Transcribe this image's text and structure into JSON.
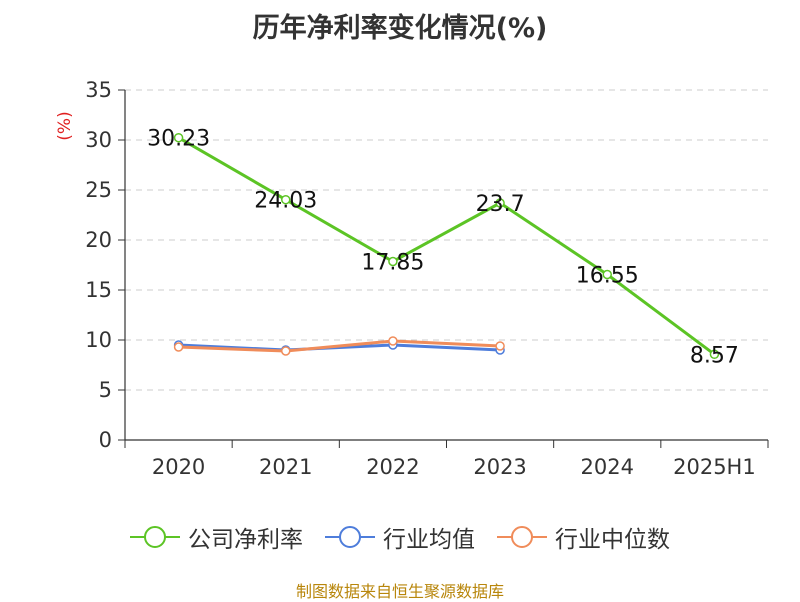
{
  "chart_data": {
    "type": "line",
    "title": "历年净利率变化情况(%)",
    "ylabel": "(%)",
    "categories": [
      "2020",
      "2021",
      "2022",
      "2023",
      "2024",
      "2025H1"
    ],
    "ylim": [
      0,
      35
    ],
    "yticks": [
      0,
      5,
      10,
      15,
      20,
      25,
      30,
      35
    ],
    "grid": true,
    "legend_position": "bottom",
    "series": [
      {
        "name": "公司净利率",
        "color": "#5cc425",
        "values": [
          30.23,
          24.03,
          17.85,
          23.7,
          16.55,
          8.57
        ],
        "labels": [
          "30.23",
          "24.03",
          "17.85",
          "23.7",
          "16.55",
          "8.57"
        ]
      },
      {
        "name": "行业均值",
        "color": "#4e7ddb",
        "values": [
          9.5,
          9.0,
          9.5,
          9.0,
          null,
          null
        ]
      },
      {
        "name": "行业中位数",
        "color": "#f08c5a",
        "values": [
          9.3,
          8.9,
          9.9,
          9.4,
          null,
          null
        ]
      }
    ]
  },
  "source": "制图数据来自恒生聚源数据库"
}
